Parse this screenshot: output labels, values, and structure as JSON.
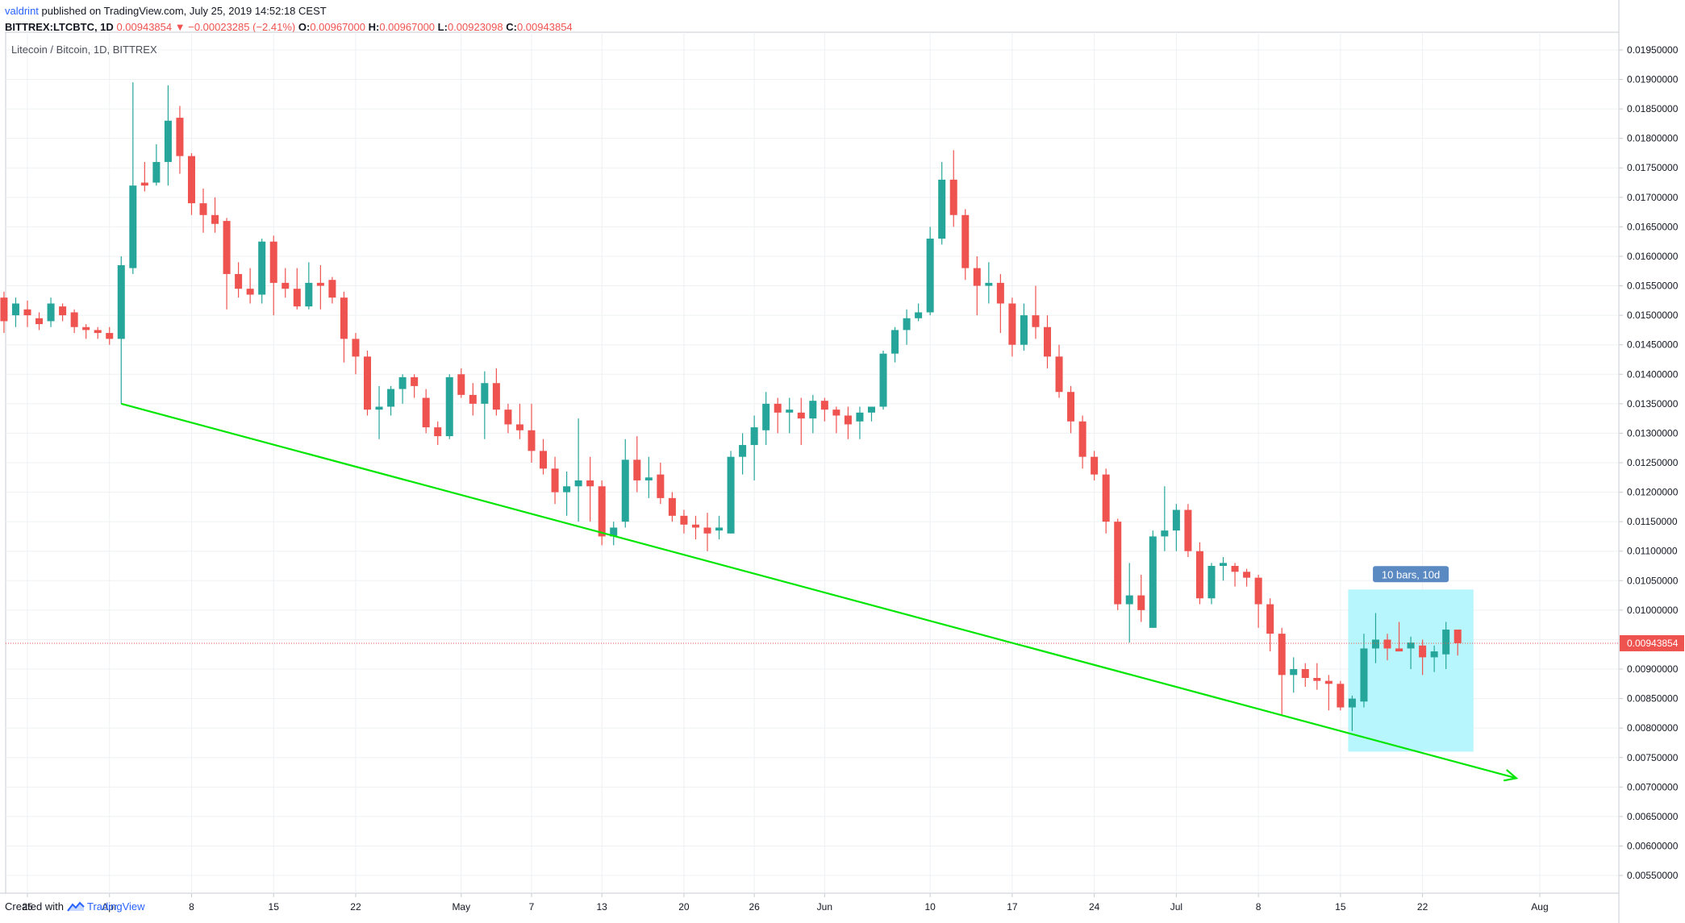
{
  "header": {
    "user": "valdrint",
    "published": "published on TradingView.com, July 25, 2019 14:52:18 CEST",
    "symbol": "BITTREX:LTCBTC, 1D",
    "last": "0.00943854",
    "change": "▼ −0.00023285 (−2.41%)",
    "o_label": "O:",
    "o": "0.00967000",
    "h_label": "H:",
    "h": "0.00967000",
    "l_label": "L:",
    "l": "0.00923098",
    "c_label": "C:",
    "c": "0.00943854"
  },
  "footer": {
    "created_with": "Created with",
    "brand": "TradingView"
  },
  "colors": {
    "up": "#26a69a",
    "down": "#ef5350",
    "trendline": "#00e600",
    "box": "#b2f5fc",
    "price_line": "#ef5350"
  },
  "chart_data": {
    "type": "candlestick",
    "title": "Litecoin / Bitcoin, 1D, BITTREX",
    "ylim": [
      0.0052,
      0.0198
    ],
    "y_ticks": [
      "0.01950000",
      "0.01900000",
      "0.01850000",
      "0.01800000",
      "0.01750000",
      "0.01700000",
      "0.01650000",
      "0.01600000",
      "0.01550000",
      "0.01500000",
      "0.01450000",
      "0.01400000",
      "0.01350000",
      "0.01300000",
      "0.01250000",
      "0.01200000",
      "0.01150000",
      "0.01100000",
      "0.01050000",
      "0.01000000",
      "0.00950000",
      "0.00900000",
      "0.00850000",
      "0.00800000",
      "0.00750000",
      "0.00700000",
      "0.00650000",
      "0.00600000",
      "0.00550000"
    ],
    "x_ticks": [
      {
        "label": "25",
        "date": "2019-03-25"
      },
      {
        "label": "Apr",
        "date": "2019-04-01"
      },
      {
        "label": "8",
        "date": "2019-04-08"
      },
      {
        "label": "15",
        "date": "2019-04-15"
      },
      {
        "label": "22",
        "date": "2019-04-22"
      },
      {
        "label": "May",
        "date": "2019-05-01"
      },
      {
        "label": "7",
        "date": "2019-05-07"
      },
      {
        "label": "13",
        "date": "2019-05-13"
      },
      {
        "label": "20",
        "date": "2019-05-20"
      },
      {
        "label": "26",
        "date": "2019-05-26"
      },
      {
        "label": "Jun",
        "date": "2019-06-01"
      },
      {
        "label": "10",
        "date": "2019-06-10"
      },
      {
        "label": "17",
        "date": "2019-06-17"
      },
      {
        "label": "24",
        "date": "2019-06-24"
      },
      {
        "label": "Jul",
        "date": "2019-07-01"
      },
      {
        "label": "8",
        "date": "2019-07-08"
      },
      {
        "label": "15",
        "date": "2019-07-15"
      },
      {
        "label": "22",
        "date": "2019-07-22"
      },
      {
        "label": "Aug",
        "date": "2019-08-01"
      }
    ],
    "candles": [
      [
        "2019-03-23",
        0.0153,
        0.0154,
        0.0147,
        0.0149
      ],
      [
        "2019-03-24",
        0.015,
        0.0153,
        0.0148,
        0.0152
      ],
      [
        "2019-03-25",
        0.0151,
        0.01525,
        0.0148,
        0.015
      ],
      [
        "2019-03-26",
        0.01495,
        0.01505,
        0.01475,
        0.01485
      ],
      [
        "2019-03-27",
        0.0149,
        0.0153,
        0.0148,
        0.0152
      ],
      [
        "2019-03-28",
        0.01515,
        0.0152,
        0.0149,
        0.015
      ],
      [
        "2019-03-29",
        0.01505,
        0.0151,
        0.0147,
        0.0148
      ],
      [
        "2019-03-30",
        0.0148,
        0.01485,
        0.0146,
        0.01475
      ],
      [
        "2019-03-31",
        0.01475,
        0.0148,
        0.0146,
        0.0147
      ],
      [
        "2019-04-01",
        0.0147,
        0.0148,
        0.0145,
        0.0146
      ],
      [
        "2019-04-02",
        0.0146,
        0.016,
        0.0135,
        0.01585
      ],
      [
        "2019-04-03",
        0.0158,
        0.01895,
        0.0157,
        0.0172
      ],
      [
        "2019-04-04",
        0.01725,
        0.0176,
        0.0171,
        0.0172
      ],
      [
        "2019-04-05",
        0.01725,
        0.0179,
        0.0172,
        0.0176
      ],
      [
        "2019-04-06",
        0.0176,
        0.0189,
        0.0172,
        0.0183
      ],
      [
        "2019-04-07",
        0.01835,
        0.01855,
        0.0174,
        0.0177
      ],
      [
        "2019-04-08",
        0.0177,
        0.01775,
        0.0167,
        0.0169
      ],
      [
        "2019-04-09",
        0.0169,
        0.01715,
        0.0164,
        0.0167
      ],
      [
        "2019-04-10",
        0.0167,
        0.017,
        0.0164,
        0.01655
      ],
      [
        "2019-04-11",
        0.0166,
        0.01665,
        0.0151,
        0.0157
      ],
      [
        "2019-04-12",
        0.0157,
        0.0159,
        0.0153,
        0.01545
      ],
      [
        "2019-04-13",
        0.01545,
        0.0158,
        0.0152,
        0.01535
      ],
      [
        "2019-04-14",
        0.01535,
        0.0163,
        0.0152,
        0.01625
      ],
      [
        "2019-04-15",
        0.01625,
        0.01635,
        0.015,
        0.01555
      ],
      [
        "2019-04-16",
        0.01555,
        0.0158,
        0.0153,
        0.01545
      ],
      [
        "2019-04-17",
        0.01545,
        0.0158,
        0.0151,
        0.01515
      ],
      [
        "2019-04-18",
        0.01515,
        0.0159,
        0.0151,
        0.01555
      ],
      [
        "2019-04-19",
        0.01555,
        0.01585,
        0.0151,
        0.0155
      ],
      [
        "2019-04-20",
        0.0156,
        0.01565,
        0.0152,
        0.0153
      ],
      [
        "2019-04-21",
        0.0153,
        0.0154,
        0.0142,
        0.0146
      ],
      [
        "2019-04-22",
        0.0146,
        0.0147,
        0.014,
        0.0143
      ],
      [
        "2019-04-23",
        0.0143,
        0.0144,
        0.0133,
        0.0134
      ],
      [
        "2019-04-24",
        0.0134,
        0.0138,
        0.0129,
        0.01345
      ],
      [
        "2019-04-25",
        0.01345,
        0.0138,
        0.0133,
        0.01375
      ],
      [
        "2019-04-26",
        0.01375,
        0.014,
        0.0135,
        0.01395
      ],
      [
        "2019-04-27",
        0.01395,
        0.014,
        0.0136,
        0.0138
      ],
      [
        "2019-04-28",
        0.0136,
        0.01375,
        0.013,
        0.0131
      ],
      [
        "2019-04-29",
        0.0131,
        0.0132,
        0.0128,
        0.01295
      ],
      [
        "2019-04-30",
        0.01295,
        0.014,
        0.0129,
        0.01395
      ],
      [
        "2019-05-01",
        0.014,
        0.0141,
        0.0136,
        0.01365
      ],
      [
        "2019-05-02",
        0.01365,
        0.01385,
        0.0133,
        0.0135
      ],
      [
        "2019-05-03",
        0.0135,
        0.01405,
        0.0129,
        0.01385
      ],
      [
        "2019-05-04",
        0.01385,
        0.0141,
        0.0133,
        0.0134
      ],
      [
        "2019-05-05",
        0.0134,
        0.0135,
        0.013,
        0.01315
      ],
      [
        "2019-05-06",
        0.01315,
        0.0135,
        0.0129,
        0.01305
      ],
      [
        "2019-05-07",
        0.01305,
        0.0135,
        0.0125,
        0.0127
      ],
      [
        "2019-05-08",
        0.0127,
        0.0129,
        0.0123,
        0.0124
      ],
      [
        "2019-05-09",
        0.0124,
        0.0126,
        0.0118,
        0.012
      ],
      [
        "2019-05-10",
        0.012,
        0.01235,
        0.0116,
        0.0121
      ],
      [
        "2019-05-11",
        0.0121,
        0.01325,
        0.0115,
        0.0122
      ],
      [
        "2019-05-12",
        0.0122,
        0.0126,
        0.0115,
        0.0121
      ],
      [
        "2019-05-13",
        0.0121,
        0.0122,
        0.0111,
        0.01125
      ],
      [
        "2019-05-14",
        0.01125,
        0.0115,
        0.0111,
        0.0114
      ],
      [
        "2019-05-15",
        0.0115,
        0.0129,
        0.0114,
        0.01255
      ],
      [
        "2019-05-16",
        0.01255,
        0.01295,
        0.012,
        0.0122
      ],
      [
        "2019-05-17",
        0.0122,
        0.0126,
        0.0119,
        0.01225
      ],
      [
        "2019-05-18",
        0.0123,
        0.0125,
        0.0118,
        0.0119
      ],
      [
        "2019-05-19",
        0.0119,
        0.012,
        0.0115,
        0.0116
      ],
      [
        "2019-05-20",
        0.0116,
        0.0117,
        0.0113,
        0.01145
      ],
      [
        "2019-05-21",
        0.01145,
        0.0116,
        0.0112,
        0.0114
      ],
      [
        "2019-05-22",
        0.0114,
        0.01165,
        0.011,
        0.0113
      ],
      [
        "2019-05-23",
        0.01135,
        0.0116,
        0.0112,
        0.0114
      ],
      [
        "2019-05-24",
        0.0113,
        0.0127,
        0.0113,
        0.0126
      ],
      [
        "2019-05-25",
        0.0126,
        0.013,
        0.0123,
        0.0128
      ],
      [
        "2019-05-26",
        0.0128,
        0.0133,
        0.0122,
        0.0131
      ],
      [
        "2019-05-27",
        0.01305,
        0.0137,
        0.0128,
        0.0135
      ],
      [
        "2019-05-28",
        0.0135,
        0.0136,
        0.013,
        0.01335
      ],
      [
        "2019-05-29",
        0.01335,
        0.0136,
        0.013,
        0.0134
      ],
      [
        "2019-05-30",
        0.01335,
        0.0136,
        0.0128,
        0.01325
      ],
      [
        "2019-05-31",
        0.01325,
        0.01365,
        0.013,
        0.01355
      ],
      [
        "2019-06-01",
        0.01355,
        0.0136,
        0.0132,
        0.0134
      ],
      [
        "2019-06-02",
        0.0134,
        0.01345,
        0.013,
        0.0133
      ],
      [
        "2019-06-03",
        0.0133,
        0.01345,
        0.0129,
        0.01315
      ],
      [
        "2019-06-04",
        0.0132,
        0.01345,
        0.0129,
        0.01335
      ],
      [
        "2019-06-05",
        0.01335,
        0.01345,
        0.0132,
        0.01345
      ],
      [
        "2019-06-06",
        0.01345,
        0.0144,
        0.0134,
        0.01435
      ],
      [
        "2019-06-07",
        0.01435,
        0.0148,
        0.0142,
        0.01475
      ],
      [
        "2019-06-08",
        0.01475,
        0.0151,
        0.0145,
        0.01495
      ],
      [
        "2019-06-09",
        0.01495,
        0.0152,
        0.0149,
        0.01505
      ],
      [
        "2019-06-10",
        0.01505,
        0.0165,
        0.015,
        0.0163
      ],
      [
        "2019-06-11",
        0.0163,
        0.0176,
        0.0162,
        0.0173
      ],
      [
        "2019-06-12",
        0.0173,
        0.0178,
        0.0165,
        0.0167
      ],
      [
        "2019-06-13",
        0.0167,
        0.0168,
        0.0156,
        0.0158
      ],
      [
        "2019-06-14",
        0.0158,
        0.016,
        0.015,
        0.0155
      ],
      [
        "2019-06-15",
        0.0155,
        0.0159,
        0.0152,
        0.01555
      ],
      [
        "2019-06-16",
        0.01555,
        0.0157,
        0.0147,
        0.0152
      ],
      [
        "2019-06-17",
        0.0152,
        0.0153,
        0.0143,
        0.0145
      ],
      [
        "2019-06-18",
        0.0145,
        0.0152,
        0.0144,
        0.015
      ],
      [
        "2019-06-19",
        0.015,
        0.0155,
        0.0146,
        0.0148
      ],
      [
        "2019-06-20",
        0.0148,
        0.015,
        0.0141,
        0.0143
      ],
      [
        "2019-06-21",
        0.0143,
        0.0145,
        0.0136,
        0.0137
      ],
      [
        "2019-06-22",
        0.0137,
        0.0138,
        0.013,
        0.0132
      ],
      [
        "2019-06-23",
        0.0132,
        0.0133,
        0.0124,
        0.0126
      ],
      [
        "2019-06-24",
        0.0126,
        0.0127,
        0.0122,
        0.0123
      ],
      [
        "2019-06-25",
        0.0123,
        0.0124,
        0.0113,
        0.0115
      ],
      [
        "2019-06-26",
        0.0115,
        0.01155,
        0.01,
        0.0101
      ],
      [
        "2019-06-27",
        0.0101,
        0.0108,
        0.00945,
        0.01025
      ],
      [
        "2019-06-28",
        0.01025,
        0.0106,
        0.0098,
        0.01
      ],
      [
        "2019-06-29",
        0.0097,
        0.01135,
        0.0097,
        0.01125
      ],
      [
        "2019-06-30",
        0.01125,
        0.0121,
        0.011,
        0.01135
      ],
      [
        "2019-07-01",
        0.01135,
        0.0118,
        0.011,
        0.0117
      ],
      [
        "2019-07-02",
        0.0117,
        0.0118,
        0.0109,
        0.011
      ],
      [
        "2019-07-03",
        0.011,
        0.01115,
        0.0101,
        0.0102
      ],
      [
        "2019-07-04",
        0.0102,
        0.0108,
        0.0101,
        0.01075
      ],
      [
        "2019-07-05",
        0.01075,
        0.0109,
        0.0105,
        0.0108
      ],
      [
        "2019-07-06",
        0.01075,
        0.0108,
        0.0104,
        0.01065
      ],
      [
        "2019-07-07",
        0.01065,
        0.0107,
        0.0104,
        0.01055
      ],
      [
        "2019-07-08",
        0.01055,
        0.0106,
        0.0097,
        0.0101
      ],
      [
        "2019-07-09",
        0.0101,
        0.0102,
        0.0093,
        0.0096
      ],
      [
        "2019-07-10",
        0.0096,
        0.0097,
        0.0082,
        0.0089
      ],
      [
        "2019-07-11",
        0.0089,
        0.0092,
        0.0086,
        0.009
      ],
      [
        "2019-07-12",
        0.009,
        0.0091,
        0.0087,
        0.00885
      ],
      [
        "2019-07-13",
        0.00885,
        0.0091,
        0.00865,
        0.0088
      ],
      [
        "2019-07-14",
        0.0088,
        0.0089,
        0.0083,
        0.00875
      ],
      [
        "2019-07-15",
        0.00875,
        0.0088,
        0.0083,
        0.00835
      ],
      [
        "2019-07-16",
        0.00835,
        0.00855,
        0.00795,
        0.0085
      ],
      [
        "2019-07-17",
        0.00845,
        0.0096,
        0.00835,
        0.00935
      ],
      [
        "2019-07-18",
        0.00935,
        0.00995,
        0.0091,
        0.0095
      ],
      [
        "2019-07-19",
        0.0095,
        0.0096,
        0.00915,
        0.00935
      ],
      [
        "2019-07-20",
        0.00935,
        0.0098,
        0.0093,
        0.0093
      ],
      [
        "2019-07-21",
        0.00935,
        0.00955,
        0.009,
        0.00945
      ],
      [
        "2019-07-22",
        0.0094,
        0.0095,
        0.0089,
        0.0092
      ],
      [
        "2019-07-23",
        0.0092,
        0.0094,
        0.00895,
        0.0093
      ],
      [
        "2019-07-24",
        0.00925,
        0.0098,
        0.009,
        0.00967
      ],
      [
        "2019-07-25",
        0.00967,
        0.00967,
        0.00923,
        0.00943854
      ]
    ],
    "trendline": {
      "start": [
        "2019-04-02",
        0.0135
      ],
      "end": [
        "2019-07-30",
        0.00715
      ],
      "arrow": true
    },
    "range_box": {
      "start": "2019-07-16",
      "end": "2019-07-26",
      "top": 0.01035,
      "bottom": 0.0076,
      "label": "10 bars, 10d"
    },
    "last_price": {
      "value": 0.00943854,
      "label": "0.00943854"
    }
  }
}
